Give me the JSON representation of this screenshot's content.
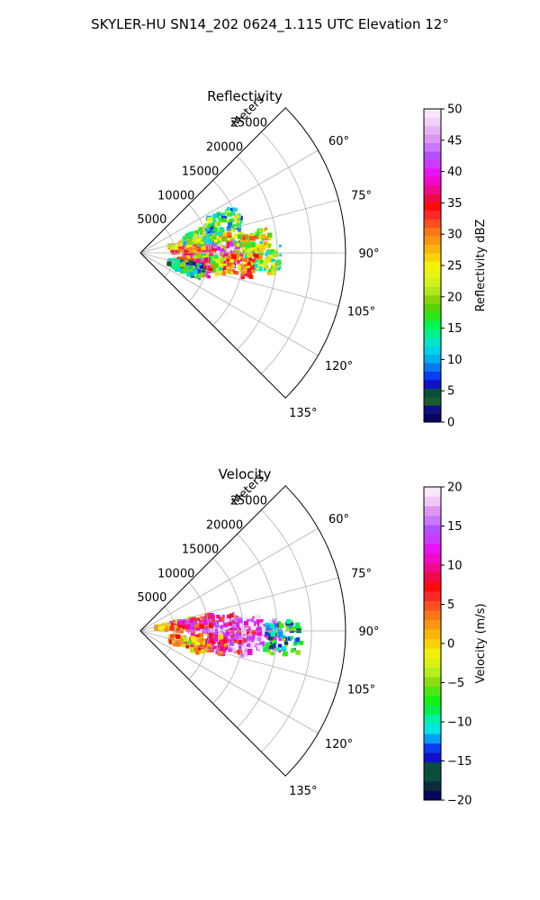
{
  "figure": {
    "title": "SKYLER-HU  SN14_202  0624_1.115 UTC Elevation 12°"
  },
  "chart_data": [
    {
      "type": "heatmap",
      "subtype": "polar-sector radar scan (PPI)",
      "title": "Reflectivity",
      "range_label": "Meters",
      "range_ticks": [
        5000,
        10000,
        15000,
        20000,
        25000
      ],
      "range_lim": [
        0,
        30000
      ],
      "azimuth_ticks": [
        "60°",
        "75°",
        "90°",
        "105°",
        "120°",
        "135°"
      ],
      "azimuth_lim_deg": [
        45,
        135
      ],
      "grid": true,
      "colorbar": {
        "label": "Reflectivity dBZ",
        "range": [
          0,
          50
        ],
        "ticks": [
          0,
          5,
          10,
          15,
          20,
          25,
          30,
          35,
          40,
          45,
          50
        ],
        "colors": [
          "#06065e",
          "#101082",
          "#1b5a2a",
          "#0a4d3d",
          "#1010c8",
          "#0a3cf0",
          "#0a78f0",
          "#00aef0",
          "#00d2e6",
          "#00e6c8",
          "#00f08c",
          "#00f550",
          "#28e61e",
          "#5ad20a",
          "#8cd20a",
          "#b4e61e",
          "#d2f01e",
          "#e6f514",
          "#f5f00a",
          "#fad20a",
          "#fab40a",
          "#fa9614",
          "#fa7814",
          "#fa501e",
          "#fa2828",
          "#ff0a0a",
          "#f00a46",
          "#f00a8c",
          "#f00ac8",
          "#e614f0",
          "#c83cff",
          "#b450ff",
          "#c878ff",
          "#dc96f0",
          "#e6b4f0",
          "#f0d2f8",
          "#f8e6fc"
        ]
      },
      "echo_cells": [
        {
          "az_deg": 82,
          "range_m": 7000,
          "value_dbz": 28
        },
        {
          "az_deg": 84,
          "range_m": 11000,
          "value_dbz": 26
        },
        {
          "az_deg": 88,
          "range_m": 9000,
          "value_dbz": 35
        },
        {
          "az_deg": 90,
          "range_m": 13500,
          "value_dbz": 46
        },
        {
          "az_deg": 86,
          "range_m": 16500,
          "value_dbz": 24
        },
        {
          "az_deg": 92,
          "range_m": 18000,
          "value_dbz": 20
        },
        {
          "az_deg": 97,
          "range_m": 14500,
          "value_dbz": 30
        },
        {
          "az_deg": 99,
          "range_m": 9500,
          "value_dbz": 18
        },
        {
          "az_deg": 103,
          "range_m": 8000,
          "value_dbz": 33
        },
        {
          "az_deg": 108,
          "range_m": 7000,
          "value_dbz": 12
        },
        {
          "az_deg": 75,
          "range_m": 9000,
          "value_dbz": 18
        },
        {
          "az_deg": 70,
          "range_m": 13000,
          "value_dbz": 16
        }
      ]
    },
    {
      "type": "heatmap",
      "subtype": "polar-sector radar scan (PPI)",
      "title": "Velocity",
      "range_label": "Meters",
      "range_ticks": [
        5000,
        10000,
        15000,
        20000,
        25000
      ],
      "range_lim": [
        0,
        30000
      ],
      "azimuth_ticks": [
        "60°",
        "75°",
        "90°",
        "105°",
        "120°",
        "135°"
      ],
      "azimuth_lim_deg": [
        45,
        135
      ],
      "grid": true,
      "colorbar": {
        "label": "Velocity (m/s)",
        "range": [
          -20,
          20
        ],
        "ticks": [
          -20,
          -15,
          -10,
          -5,
          0,
          5,
          10,
          15,
          20
        ],
        "colors": [
          "#06065e",
          "#0a2c3c",
          "#0a4d3d",
          "#0a4d3d",
          "#1010c8",
          "#0a3cf0",
          "#00a0f0",
          "#00e6e6",
          "#00f0aa",
          "#00f050",
          "#14f014",
          "#50e614",
          "#8cdc14",
          "#b4f01e",
          "#dcf014",
          "#f5f00a",
          "#fad20a",
          "#fab40a",
          "#fa9614",
          "#fa7814",
          "#fa501e",
          "#fa2828",
          "#ff0a0a",
          "#f00a46",
          "#f00a8c",
          "#f00ac8",
          "#e614f0",
          "#c83cff",
          "#b450ff",
          "#c878ff",
          "#dc96f0",
          "#f0c8f8",
          "#f8e6fc"
        ]
      },
      "echo_cells": [
        {
          "az_deg": 82,
          "range_m": 5000,
          "value_ms": 2
        },
        {
          "az_deg": 84,
          "range_m": 8000,
          "value_ms": 8
        },
        {
          "az_deg": 86,
          "range_m": 12000,
          "value_ms": 12
        },
        {
          "az_deg": 90,
          "range_m": 15000,
          "value_ms": 15
        },
        {
          "az_deg": 92,
          "range_m": 18000,
          "value_ms": 17
        },
        {
          "az_deg": 97,
          "range_m": 14000,
          "value_ms": 12
        },
        {
          "az_deg": 100,
          "range_m": 10000,
          "value_ms": 6
        },
        {
          "az_deg": 104,
          "range_m": 7000,
          "value_ms": 1
        },
        {
          "az_deg": 93,
          "range_m": 21000,
          "value_ms": -10
        }
      ]
    }
  ]
}
